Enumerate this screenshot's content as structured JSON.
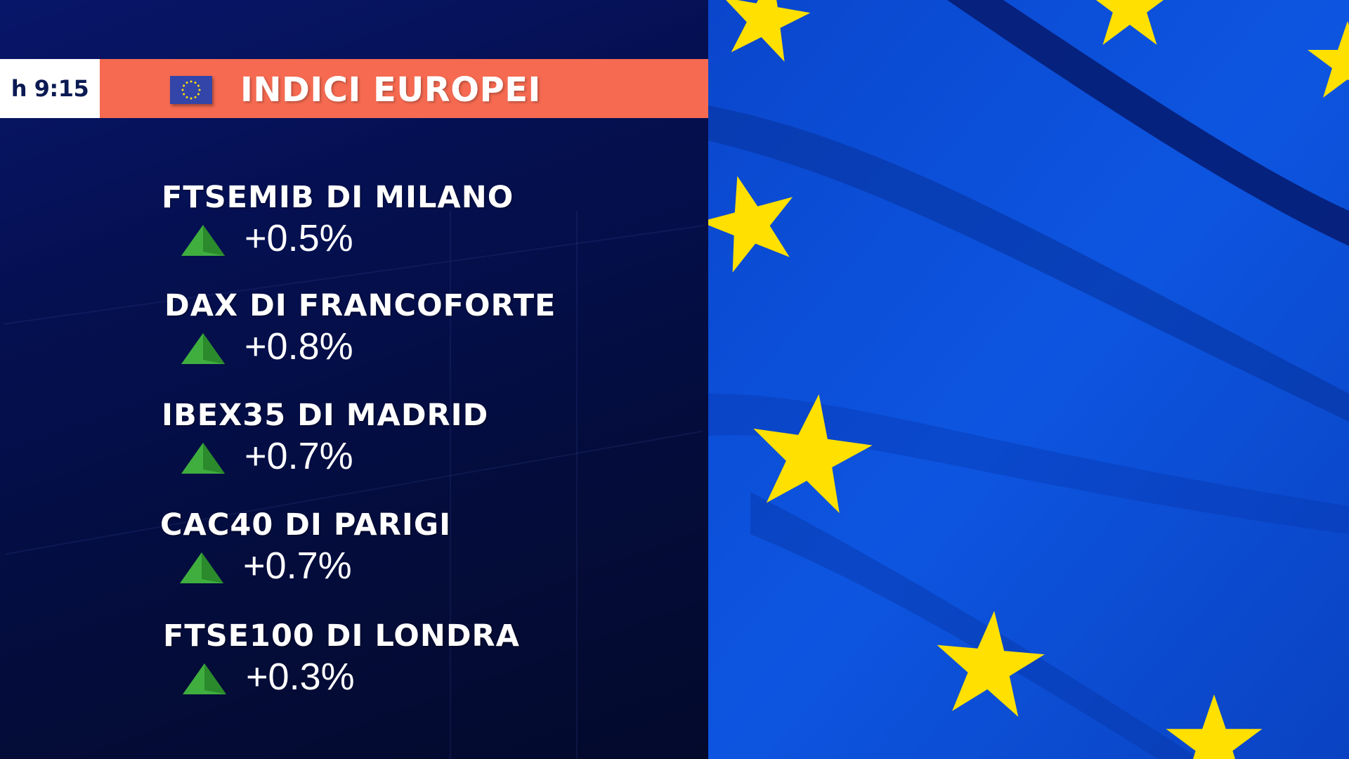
{
  "header": {
    "time": "h 9:15",
    "title": "INDICI EUROPEI",
    "icon": "eu-flag-icon"
  },
  "colors": {
    "header_bar": "#f56a51",
    "up_arrow": "#3fae3f",
    "flag_blue": "#0b4fd6",
    "flag_star": "#ffe000"
  },
  "indices": [
    {
      "name": "FTSEMIB DI MILANO",
      "change": "+0.5%",
      "direction": "up"
    },
    {
      "name": "DAX DI FRANCOFORTE",
      "change": "+0.8%",
      "direction": "up"
    },
    {
      "name": "IBEX35 DI MADRID",
      "change": "+0.7%",
      "direction": "up"
    },
    {
      "name": "CAC40 DI PARIGI",
      "change": "+0.7%",
      "direction": "up"
    },
    {
      "name": "FTSE100 DI LONDRA",
      "change": "+0.3%",
      "direction": "up"
    }
  ]
}
